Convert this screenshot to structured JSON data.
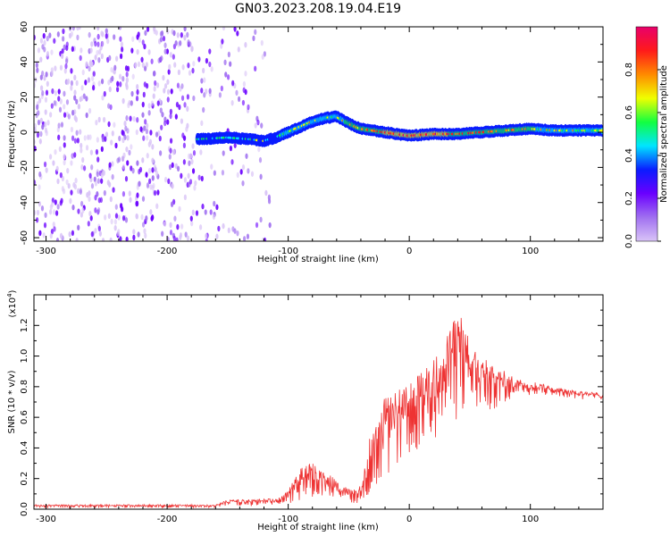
{
  "figure": {
    "title": "GN03.2023.208.19.04.E19"
  },
  "chart_data": [
    {
      "type": "heatmap",
      "xlabel": "Height of straight line (km)",
      "ylabel": "Frequency (Hz)",
      "xlim": [
        -310,
        160
      ],
      "ylim": [
        -62,
        60
      ],
      "x_ticks": [
        -300,
        -200,
        -100,
        0,
        100
      ],
      "y_ticks": [
        -60,
        -40,
        -20,
        0,
        20,
        40,
        60
      ],
      "colorbar": {
        "label": "Normalized spectral amplitude",
        "range": [
          0,
          1
        ],
        "ticks": [
          "0.0",
          "0.2",
          "0.4",
          "0.6",
          "0.8"
        ],
        "colors": [
          "#d9c4f7",
          "#a070f0",
          "#6a00ff",
          "#0a1cff",
          "#00e5ff",
          "#12ff40",
          "#f0ff00",
          "#ff8a00",
          "#ff1a1a",
          "#e8006a"
        ]
      },
      "noise_region": {
        "x_range": [
          -310,
          -115
        ],
        "level": 0.25
      },
      "ridge": {
        "x": [
          -175,
          -150,
          -130,
          -120,
          -110,
          -100,
          -90,
          -80,
          -70,
          -60,
          -50,
          -40,
          -20,
          0,
          20,
          40,
          60,
          80,
          100,
          120,
          140,
          160
        ],
        "freq": [
          -4,
          -3,
          -4,
          -5,
          -3,
          0,
          3,
          6,
          8,
          9,
          5,
          2,
          0,
          -2,
          -1,
          -1,
          0,
          1,
          2,
          1,
          1,
          1
        ],
        "amplitude": [
          0.45,
          0.45,
          0.48,
          0.5,
          0.5,
          0.55,
          0.6,
          0.62,
          0.62,
          0.6,
          0.7,
          0.72,
          0.82,
          0.85,
          0.84,
          0.8,
          0.78,
          0.72,
          0.68,
          0.62,
          0.6,
          0.58
        ]
      }
    },
    {
      "type": "line",
      "xlabel": "Height of straight line (km)",
      "ylabel": "SNR (10 * v/v)",
      "exponent_label": "(x10",
      "exponent_power": "4",
      "exponent_close": ")",
      "xlim": [
        -310,
        160
      ],
      "ylim": [
        0,
        1.4
      ],
      "x_ticks": [
        -300,
        -200,
        -100,
        0,
        100
      ],
      "y_ticks": [
        "0.0",
        "0.2",
        "0.4",
        "0.6",
        "0.8",
        "1.0",
        "1.2"
      ],
      "series": [
        {
          "color": "#ee3333",
          "envelope": {
            "x": [
              -310,
              -160,
              -150,
              -110,
              -100,
              -90,
              -80,
              -75,
              -65,
              -58,
              -50,
              -42,
              -38,
              -32,
              -27,
              -20,
              -10,
              0,
              10,
              20,
              30,
              40,
              50,
              60,
              70,
              80,
              90,
              100,
              110,
              120,
              140,
              160
            ],
            "low": [
              0.01,
              0.01,
              0.02,
              0.02,
              0.03,
              0.06,
              0.08,
              0.08,
              0.05,
              0.06,
              0.04,
              0.04,
              0.05,
              0.06,
              0.1,
              0.2,
              0.28,
              0.35,
              0.4,
              0.45,
              0.52,
              0.55,
              0.58,
              0.6,
              0.65,
              0.7,
              0.72,
              0.74,
              0.74,
              0.74,
              0.72,
              0.7
            ],
            "high": [
              0.03,
              0.03,
              0.06,
              0.07,
              0.12,
              0.28,
              0.31,
              0.26,
              0.23,
              0.16,
              0.15,
              0.14,
              0.25,
              0.5,
              0.55,
              0.74,
              0.78,
              0.82,
              0.9,
              1.0,
              1.1,
              1.33,
              1.1,
              1.0,
              0.93,
              0.9,
              0.86,
              0.84,
              0.82,
              0.8,
              0.77,
              0.76
            ]
          }
        }
      ]
    }
  ]
}
